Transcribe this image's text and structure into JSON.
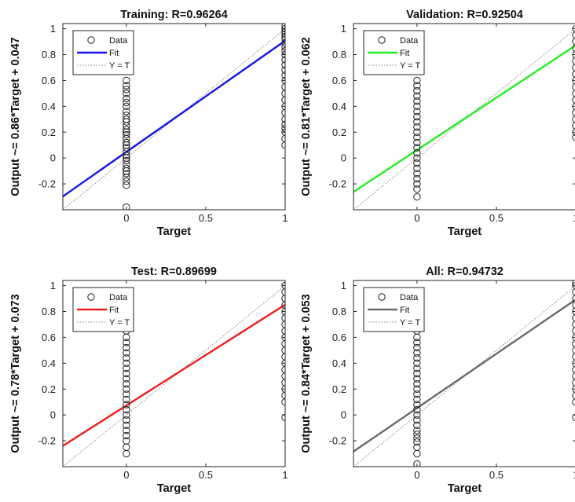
{
  "chart_data": [
    {
      "type": "scatter",
      "title": "Training: R=0.96264",
      "xlabel": "Target",
      "ylabel": "Output ~= 0.86*Target + 0.047",
      "xlim": [
        -0.4,
        1
      ],
      "ylim": [
        -0.4,
        1.04
      ],
      "xticks": [
        0,
        0.5,
        1
      ],
      "xtick_labels": [
        "0",
        "0.5",
        "1"
      ],
      "yticks": [
        -0.2,
        0,
        0.2,
        0.4,
        0.6,
        0.8,
        1
      ],
      "ytick_labels": [
        "-0.2",
        "0",
        "0.2",
        "0.4",
        "0.6",
        "0.8",
        "1"
      ],
      "fit": {
        "slope": 0.86,
        "intercept": 0.047,
        "color": "#1515e6"
      },
      "identity_line": true,
      "data_points": {
        "at_0": [
          -0.38,
          -0.21,
          -0.18,
          -0.15,
          -0.12,
          -0.1,
          -0.08,
          -0.05,
          -0.02,
          0.0,
          0.02,
          0.05,
          0.08,
          0.1,
          0.12,
          0.15,
          0.18,
          0.2,
          0.22,
          0.25,
          0.28,
          0.3,
          0.33,
          0.36,
          0.4,
          0.43,
          0.46,
          0.5,
          0.53,
          0.56,
          0.6
        ],
        "at_1": [
          0.1,
          0.15,
          0.2,
          0.23,
          0.26,
          0.3,
          0.35,
          0.4,
          0.45,
          0.5,
          0.55,
          0.6,
          0.64,
          0.68,
          0.72,
          0.76,
          0.8,
          0.83,
          0.86,
          0.89,
          0.92,
          0.94,
          0.96,
          0.98,
          1.0,
          1.02
        ]
      },
      "legend": {
        "placement": "top-left",
        "items": [
          "Data",
          "Fit",
          "Y = T"
        ]
      }
    },
    {
      "type": "scatter",
      "title": "Validation: R=0.92504",
      "xlabel": "Target",
      "ylabel": "Output ~= 0.81*Target + 0.062",
      "xlim": [
        -0.4,
        1
      ],
      "ylim": [
        -0.4,
        1.04
      ],
      "xticks": [
        0,
        0.5,
        1
      ],
      "xtick_labels": [
        "0",
        "0.5",
        "1"
      ],
      "yticks": [
        -0.2,
        0,
        0.2,
        0.4,
        0.6,
        0.8,
        1
      ],
      "ytick_labels": [
        "-0.2",
        "0",
        "0.2",
        "0.4",
        "0.6",
        "0.8",
        "1"
      ],
      "fit": {
        "slope": 0.81,
        "intercept": 0.062,
        "color": "#22ee22"
      },
      "identity_line": true,
      "data_points": {
        "at_0": [
          -0.3,
          -0.24,
          -0.2,
          -0.16,
          -0.12,
          -0.08,
          -0.04,
          0.0,
          0.04,
          0.08,
          0.12,
          0.16,
          0.2,
          0.24,
          0.28,
          0.32,
          0.36,
          0.4,
          0.44,
          0.48,
          0.52,
          0.56,
          0.6
        ],
        "at_1": [
          0.16,
          0.2,
          0.25,
          0.3,
          0.35,
          0.4,
          0.45,
          0.5,
          0.55,
          0.6,
          0.65,
          0.7,
          0.75,
          0.8,
          0.85,
          0.9,
          0.95,
          1.0
        ]
      },
      "legend": {
        "placement": "top-left",
        "items": [
          "Data",
          "Fit",
          "Y = T"
        ]
      }
    },
    {
      "type": "scatter",
      "title": "Test: R=0.89699",
      "xlabel": "Target",
      "ylabel": "Output ~= 0.78*Target + 0.073",
      "xlim": [
        -0.4,
        1
      ],
      "ylim": [
        -0.4,
        1.04
      ],
      "xticks": [
        0,
        0.5,
        1
      ],
      "xtick_labels": [
        "0",
        "0.5",
        "1"
      ],
      "yticks": [
        -0.2,
        0,
        0.2,
        0.4,
        0.6,
        0.8,
        1
      ],
      "ytick_labels": [
        "-0.2",
        "0",
        "0.2",
        "0.4",
        "0.6",
        "0.8",
        "1"
      ],
      "fit": {
        "slope": 0.78,
        "intercept": 0.073,
        "color": "#ee1c1c"
      },
      "identity_line": true,
      "data_points": {
        "at_0": [
          -0.3,
          -0.25,
          -0.2,
          -0.16,
          -0.12,
          -0.08,
          -0.04,
          0.0,
          0.04,
          0.08,
          0.12,
          0.16,
          0.2,
          0.24,
          0.28,
          0.32,
          0.36,
          0.4,
          0.44,
          0.48,
          0.52,
          0.56,
          0.6,
          0.65,
          0.7,
          0.8,
          0.94
        ],
        "at_1": [
          -0.02,
          0.1,
          0.15,
          0.2,
          0.25,
          0.3,
          0.35,
          0.4,
          0.45,
          0.5,
          0.55,
          0.6,
          0.65,
          0.7,
          0.75,
          0.8,
          0.85,
          0.9,
          0.95,
          1.0
        ]
      },
      "legend": {
        "placement": "top-left",
        "items": [
          "Data",
          "Fit",
          "Y = T"
        ]
      }
    },
    {
      "type": "scatter",
      "title": "All: R=0.94732",
      "xlabel": "Target",
      "ylabel": "Output ~= 0.84*Target + 0.053",
      "xlim": [
        -0.4,
        1
      ],
      "ylim": [
        -0.4,
        1.04
      ],
      "xticks": [
        0,
        0.5,
        1
      ],
      "xtick_labels": [
        "0",
        "0.5",
        "1"
      ],
      "yticks": [
        -0.2,
        0,
        0.2,
        0.4,
        0.6,
        0.8,
        1
      ],
      "ytick_labels": [
        "-0.2",
        "0",
        "0.2",
        "0.4",
        "0.6",
        "0.8",
        "1"
      ],
      "fit": {
        "slope": 0.84,
        "intercept": 0.053,
        "color": "#6b6b6b"
      },
      "identity_line": true,
      "data_points": {
        "at_0": [
          -0.38,
          -0.3,
          -0.25,
          -0.21,
          -0.18,
          -0.15,
          -0.12,
          -0.08,
          -0.04,
          0.0,
          0.04,
          0.08,
          0.12,
          0.16,
          0.2,
          0.24,
          0.28,
          0.32,
          0.36,
          0.4,
          0.44,
          0.48,
          0.52,
          0.56,
          0.6,
          0.65,
          0.7,
          0.8,
          0.94
        ],
        "at_1": [
          -0.02,
          0.1,
          0.15,
          0.2,
          0.25,
          0.3,
          0.35,
          0.4,
          0.45,
          0.5,
          0.55,
          0.6,
          0.65,
          0.7,
          0.75,
          0.8,
          0.85,
          0.9,
          0.95,
          1.0,
          1.02
        ]
      },
      "legend": {
        "placement": "top-left",
        "items": [
          "Data",
          "Fit",
          "Y = T"
        ]
      }
    }
  ]
}
